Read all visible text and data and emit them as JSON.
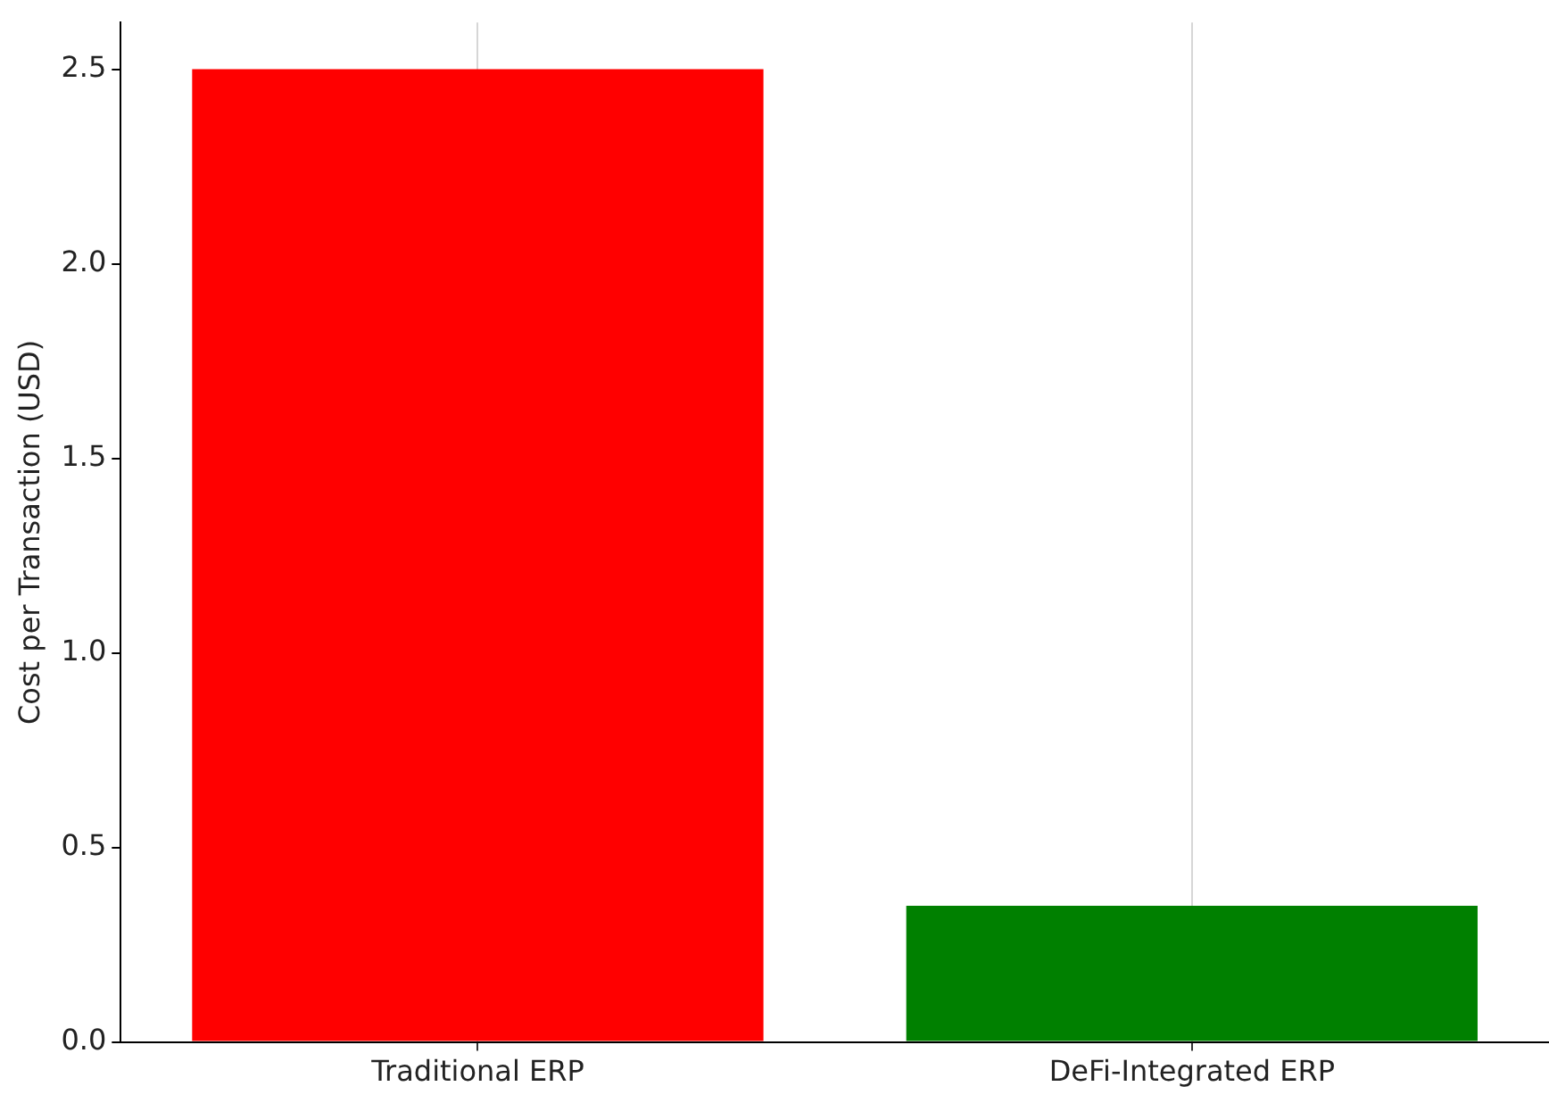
{
  "chart_data": {
    "type": "bar",
    "ylabel": "Cost per Transaction (USD)",
    "categories": [
      "Traditional ERP",
      "DeFi-Integrated ERP"
    ],
    "values": [
      2.5,
      0.35
    ],
    "colors": [
      "#ff0000",
      "#008000"
    ],
    "ylim": [
      0,
      2.62
    ],
    "yticks": [
      {
        "value": 0,
        "label": "0.0"
      },
      {
        "value": 0.5,
        "label": "0.5"
      },
      {
        "value": 1,
        "label": "1.0"
      },
      {
        "value": 1.5,
        "label": "1.5"
      },
      {
        "value": 2,
        "label": "2.0"
      },
      {
        "value": 2.5,
        "label": "2.5"
      }
    ],
    "grid": "x"
  }
}
